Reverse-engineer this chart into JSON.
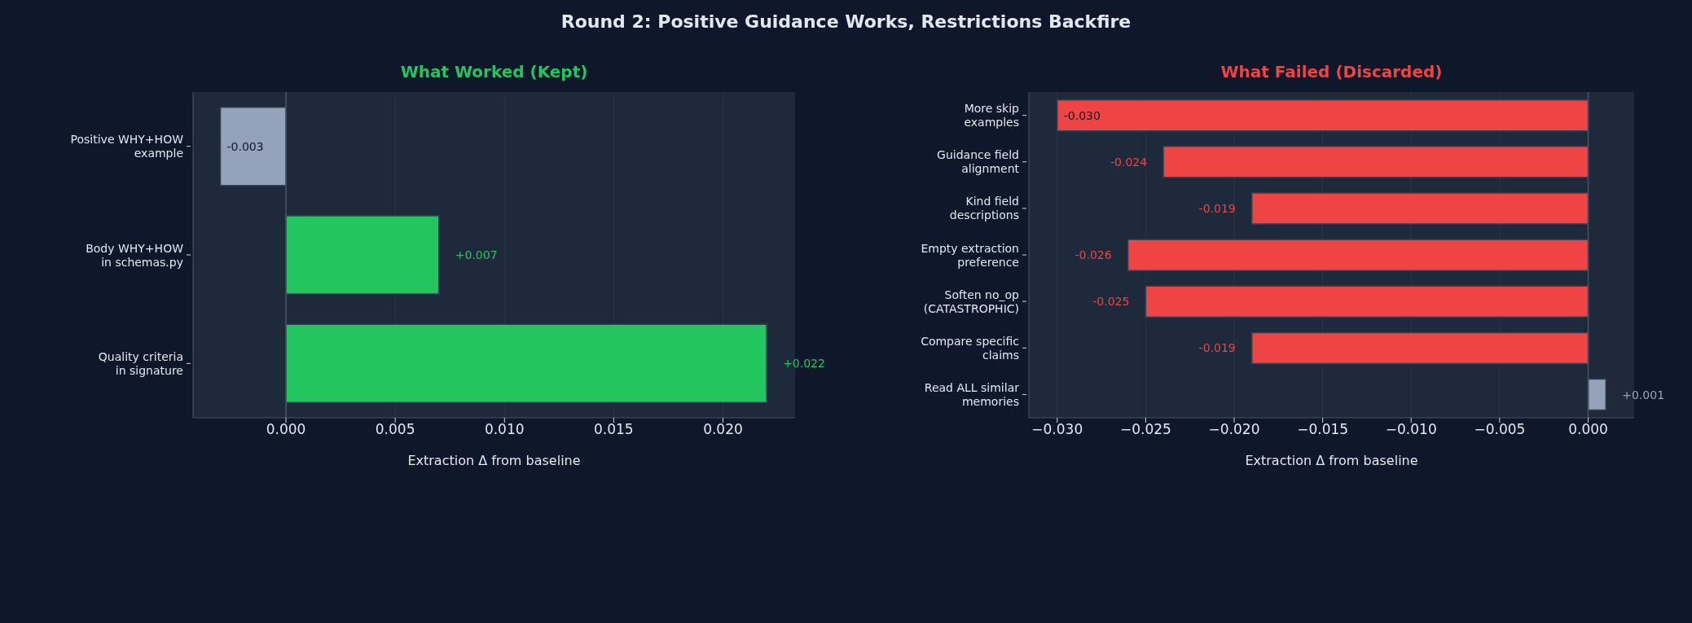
{
  "chart_data": [
    {
      "type": "bar",
      "orientation": "horizontal",
      "title": "What Worked (Kept)",
      "xlabel": "Extraction Δ from baseline",
      "annotations": [
        "Round 2: Positive Guidance Works, Restrictions Backfire"
      ],
      "categories": [
        "Positive WHY+HOW\nexample",
        "Body WHY+HOW\nin schemas.py",
        "Quality criteria\nin signature"
      ],
      "values": [
        -0.003,
        0.007,
        0.022
      ],
      "colors": [
        "#94a3b8",
        "#22c55e",
        "#22c55e"
      ],
      "value_labels": [
        "-0.003",
        "+0.007",
        "+0.022"
      ],
      "xlim": [
        -0.00425,
        0.0233
      ],
      "xticks": [
        {
          "value": 0,
          "label": "0.000"
        },
        {
          "value": 0.005,
          "label": "0.005"
        },
        {
          "value": 0.01,
          "label": "0.010"
        },
        {
          "value": 0.015,
          "label": "0.015"
        },
        {
          "value": 0.02,
          "label": "0.020"
        }
      ],
      "grid": "x",
      "ref_lines": [
        {
          "axis": "x",
          "value": 0,
          "color": "#475569"
        }
      ]
    },
    {
      "type": "bar",
      "orientation": "horizontal",
      "title": "What Failed (Discarded)",
      "xlabel": "Extraction Δ from baseline",
      "categories": [
        "More skip\nexamples",
        "Guidance field\nalignment",
        "Kind field\ndescriptions",
        "Empty extraction\npreference",
        "Soften no_op\n(CATASTROPHIC)",
        "Compare specific\nclaims",
        "Read ALL similar\nmemories"
      ],
      "values": [
        -0.03,
        -0.024,
        -0.019,
        -0.026,
        -0.025,
        -0.019,
        0.001
      ],
      "colors": [
        "#ef4444",
        "#ef4444",
        "#ef4444",
        "#ef4444",
        "#ef4444",
        "#ef4444",
        "#94a3b8"
      ],
      "value_labels": [
        "-0.030",
        "-0.024",
        "-0.019",
        "-0.026",
        "-0.025",
        "-0.019",
        "+0.001"
      ],
      "xlim": [
        -0.0316,
        0.0026
      ],
      "xticks": [
        {
          "value": -0.03,
          "label": "−0.030"
        },
        {
          "value": -0.025,
          "label": "−0.025"
        },
        {
          "value": -0.02,
          "label": "−0.020"
        },
        {
          "value": -0.015,
          "label": "−0.015"
        },
        {
          "value": -0.01,
          "label": "−0.010"
        },
        {
          "value": -0.005,
          "label": "−0.005"
        },
        {
          "value": 0,
          "label": "0.000"
        }
      ],
      "grid": "x",
      "ref_lines": [
        {
          "axis": "x",
          "value": 0,
          "color": "#475569"
        }
      ]
    }
  ]
}
